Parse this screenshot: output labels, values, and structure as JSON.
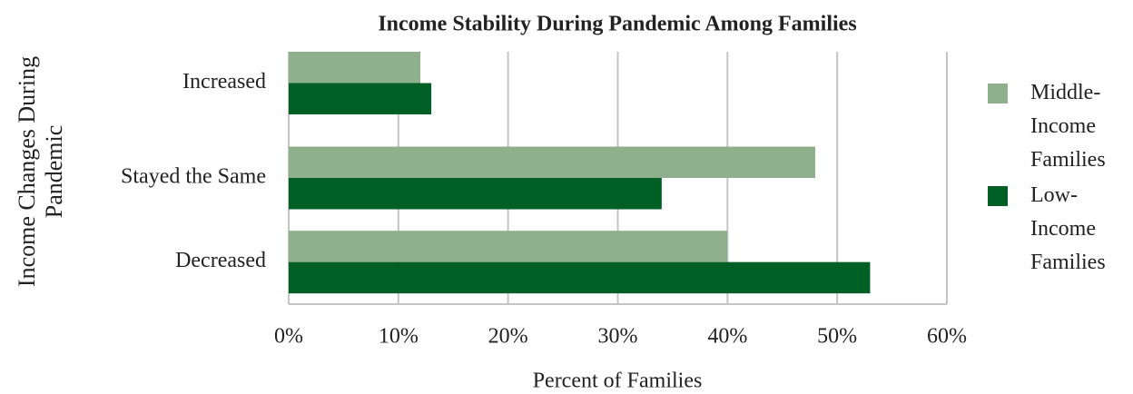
{
  "chart_data": {
    "type": "barh",
    "title": "Income Stability During Pandemic Among Families",
    "x_label": "Percent of Families",
    "y_label": "Income Changes During Pandemic",
    "categories": [
      "Increased",
      "Stayed the Same",
      "Decreased"
    ],
    "series": [
      {
        "name": "Middle-Income Families",
        "color": "#8fb08c",
        "values": [
          12,
          48,
          40
        ]
      },
      {
        "name": "Low-Income Families",
        "color": "#005f24",
        "values": [
          13,
          34,
          53
        ]
      }
    ],
    "xlim": [
      0,
      60
    ],
    "xticks": [
      {
        "value": 0,
        "label": "0%"
      },
      {
        "value": 10,
        "label": "10%"
      },
      {
        "value": 20,
        "label": "20%"
      },
      {
        "value": 30,
        "label": "30%"
      },
      {
        "value": 40,
        "label": "40%"
      },
      {
        "value": 50,
        "label": "50%"
      },
      {
        "value": 60,
        "label": "60%"
      }
    ],
    "grid": true,
    "legend": "right"
  }
}
